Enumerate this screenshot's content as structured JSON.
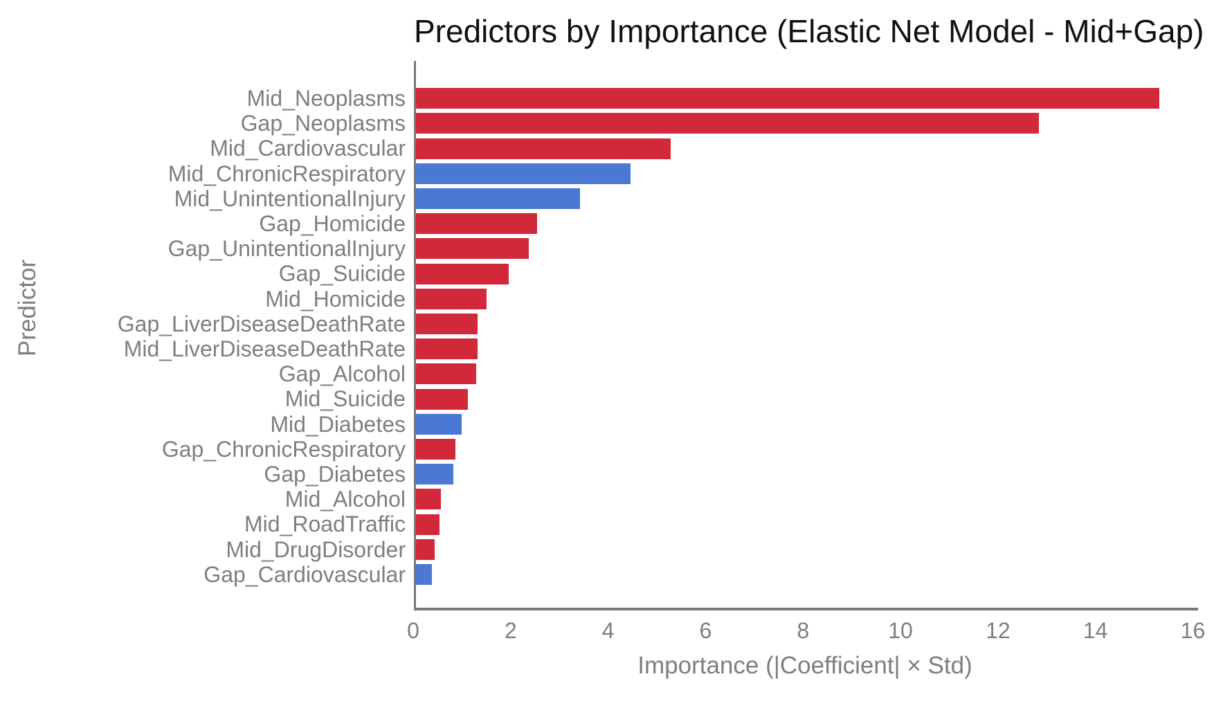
{
  "colors": {
    "red": "#D2293A",
    "blue": "#4A78D3",
    "axis_line": "#787878",
    "tick_text": "#7E7E7E",
    "title_text": "#111111",
    "background": "#FFFFFF"
  },
  "chart_data": {
    "type": "bar",
    "orientation": "horizontal",
    "title": "Predictors by Importance (Elastic Net Model - Mid+Gap)",
    "xlabel": "Importance (|Coefficient| × Std)",
    "ylabel": "Predictor",
    "xlim": [
      0,
      16.05
    ],
    "xticks": [
      0,
      2,
      4,
      6,
      8,
      10,
      12,
      14,
      16
    ],
    "grid": false,
    "legend": "none",
    "categories": [
      "Mid_Neoplasms",
      "Gap_Neoplasms",
      "Mid_Cardiovascular",
      "Mid_ChronicRespiratory",
      "Mid_UnintentionalInjury",
      "Gap_Homicide",
      "Gap_UnintentionalInjury",
      "Gap_Suicide",
      "Mid_Homicide",
      "Gap_LiverDiseaseDeathRate",
      "Mid_LiverDiseaseDeathRate",
      "Gap_Alcohol",
      "Mid_Suicide",
      "Mid_Diabetes",
      "Gap_ChronicRespiratory",
      "Gap_Diabetes",
      "Mid_Alcohol",
      "Mid_RoadTraffic",
      "Mid_DrugDisorder",
      "Gap_Cardiovascular"
    ],
    "values": [
      15.26,
      12.78,
      5.22,
      4.4,
      3.36,
      2.48,
      2.31,
      1.9,
      1.45,
      1.27,
      1.26,
      1.23,
      1.06,
      0.94,
      0.81,
      0.77,
      0.51,
      0.49,
      0.38,
      0.33
    ],
    "bar_colors": [
      "red",
      "red",
      "red",
      "blue",
      "blue",
      "red",
      "red",
      "red",
      "red",
      "red",
      "red",
      "red",
      "red",
      "blue",
      "red",
      "blue",
      "red",
      "red",
      "red",
      "blue"
    ]
  }
}
